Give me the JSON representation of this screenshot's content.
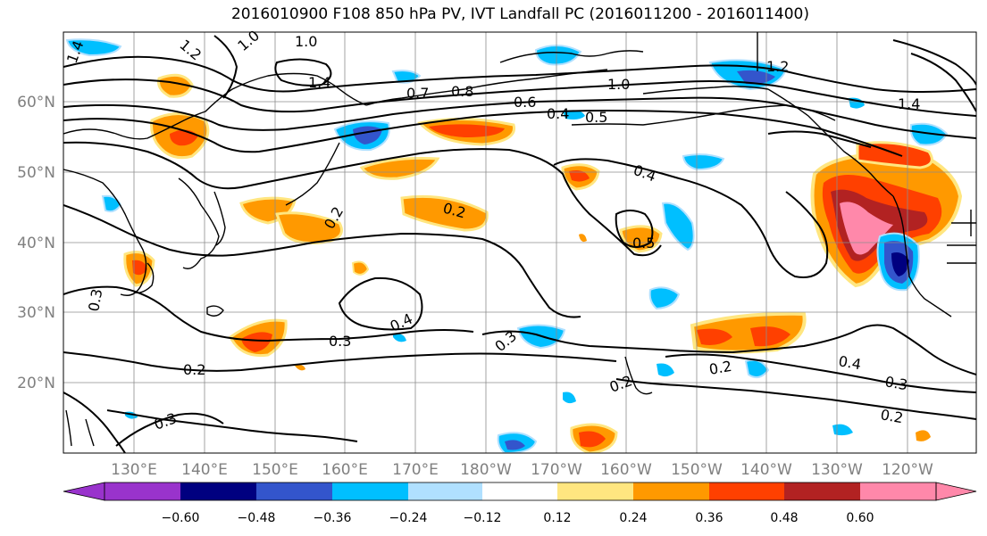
{
  "title": "2016010900 F108 850 hPa PV, IVT Landfall PC (2016011200 - 2016011400)",
  "map": {
    "lat_ticks": [
      "60°N",
      "50°N",
      "40°N",
      "30°N",
      "20°N"
    ],
    "lon_ticks": [
      "130°E",
      "140°E",
      "150°E",
      "160°E",
      "170°E",
      "180°W",
      "170°W",
      "160°W",
      "150°W",
      "140°W",
      "130°W",
      "120°W"
    ],
    "contour_labels": [
      "1.4",
      "1.2",
      "1.0",
      "1.0",
      "1.4",
      "0.7",
      "0.8",
      "0.6",
      "0.4",
      "0.5",
      "1.2",
      "1.0",
      "1.4",
      "0.4",
      "0.2",
      "0.2",
      "0.5",
      "0.4",
      "0.3",
      "0.3",
      "0.2",
      "0.3",
      "0.2",
      "0.2",
      "0.4",
      "0.3",
      "0.2",
      "0.3"
    ],
    "colors": {
      "land": "#000000",
      "grid": "#8c8c8c",
      "contour": "#000000"
    }
  },
  "colorbar": {
    "ticks": [
      "−0.60",
      "−0.48",
      "−0.36",
      "−0.24",
      "−0.12",
      "0.12",
      "0.24",
      "0.36",
      "0.48",
      "0.60"
    ],
    "colors": [
      "#9933cc",
      "#000080",
      "#3355cc",
      "#00bfff",
      "#b0e0ff",
      "#ffffff",
      "#ffe680",
      "#ff9900",
      "#ff4000",
      "#b22222",
      "#ff88aa"
    ]
  }
}
